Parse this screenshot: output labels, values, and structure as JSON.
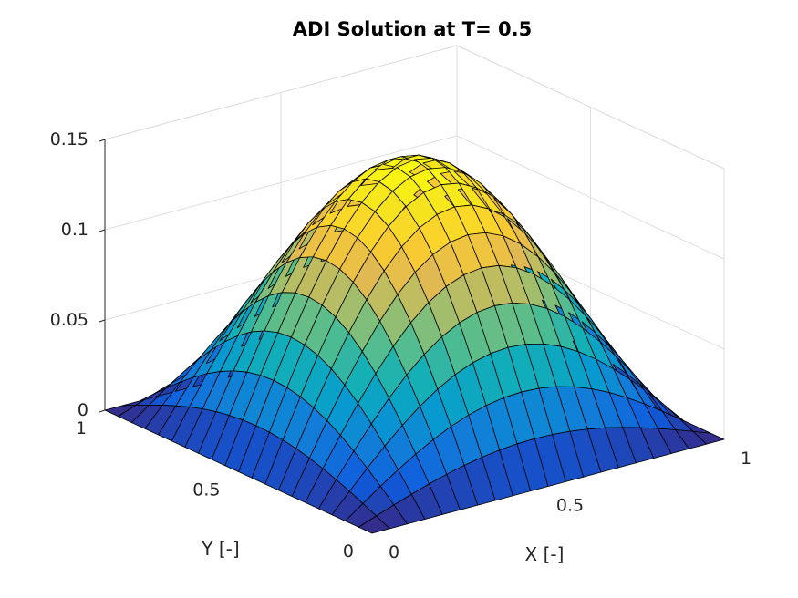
{
  "chart_data": {
    "type": "surface",
    "title": "ADI Solution at T= 0.5",
    "xlabel": "X [-]",
    "ylabel": "Y [-]",
    "zlabel": "",
    "xlim": [
      0,
      1
    ],
    "ylim": [
      0,
      1
    ],
    "zlim": [
      0,
      0.15
    ],
    "x_ticks": [
      {
        "value": 0,
        "label": "0"
      },
      {
        "value": 0.5,
        "label": "0.5"
      },
      {
        "value": 1,
        "label": "1"
      }
    ],
    "y_ticks": [
      {
        "value": 0,
        "label": "0"
      },
      {
        "value": 0.5,
        "label": "0.5"
      },
      {
        "value": 1,
        "label": "1"
      }
    ],
    "z_ticks": [
      {
        "value": 0,
        "label": "0"
      },
      {
        "value": 0.05,
        "label": "0.05"
      },
      {
        "value": 0.1,
        "label": "0.1"
      },
      {
        "value": 0.15,
        "label": "0.15"
      }
    ],
    "grid": true,
    "colormap": "parula",
    "grid_points": 21,
    "surface": {
      "function": "z = A * sin(pi*x) * sin(pi*y)",
      "A": 0.147
    }
  }
}
